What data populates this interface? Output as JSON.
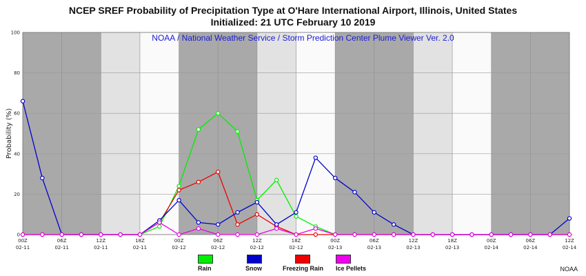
{
  "chart_data": {
    "type": "line",
    "title": "NCEP SREF Probability of Precipitation Type at O'Hare International Airport, Illinois, United States",
    "subtitle": "Initialized: 21 UTC February 10 2019",
    "plot_subtitle": "NOAA / National Weather Service / Storm Prediction Center Plume Viewer Ver. 2.0",
    "ylabel": "Probability (%)",
    "xlabel": "",
    "ylim": [
      0,
      100
    ],
    "yticks": [
      "0",
      "20",
      "40",
      "60",
      "80",
      "100"
    ],
    "xticks": [
      {
        "hour": "00Z",
        "date": "02-11"
      },
      {
        "hour": "06Z",
        "date": "02-11"
      },
      {
        "hour": "12Z",
        "date": "02-11"
      },
      {
        "hour": "18Z",
        "date": "02-11"
      },
      {
        "hour": "00Z",
        "date": "02-12"
      },
      {
        "hour": "06Z",
        "date": "02-12"
      },
      {
        "hour": "12Z",
        "date": "02-12"
      },
      {
        "hour": "18Z",
        "date": "02-12"
      },
      {
        "hour": "00Z",
        "date": "02-13"
      },
      {
        "hour": "06Z",
        "date": "02-13"
      },
      {
        "hour": "12Z",
        "date": "02-13"
      },
      {
        "hour": "18Z",
        "date": "02-13"
      },
      {
        "hour": "00Z",
        "date": "02-14"
      },
      {
        "hour": "06Z",
        "date": "02-14"
      },
      {
        "hour": "12Z",
        "date": "02-14"
      }
    ],
    "x_hours": [
      0,
      3,
      6,
      9,
      12,
      15,
      18,
      21,
      24,
      27,
      30,
      33,
      36,
      39,
      42,
      45,
      48,
      51,
      54,
      57,
      60,
      63,
      66,
      69,
      72,
      75,
      78,
      81,
      84
    ],
    "night_shading": [
      [
        0,
        12
      ],
      [
        24,
        36
      ],
      [
        48,
        60
      ],
      [
        72,
        84
      ]
    ],
    "grid": true,
    "legend_position": "bottom",
    "series": [
      {
        "name": "Rain",
        "color": "#00ee00",
        "values": [
          0,
          0,
          0,
          0,
          0,
          0,
          0,
          4,
          24,
          52,
          60,
          51,
          17,
          27,
          9,
          4,
          0,
          0,
          0,
          0,
          0,
          0,
          0,
          0,
          0,
          0,
          0,
          0,
          0
        ]
      },
      {
        "name": "Snow",
        "color": "#0000cc",
        "values": [
          66,
          28,
          0,
          0,
          0,
          0,
          0,
          7,
          17,
          6,
          5,
          11,
          16,
          5,
          11,
          38,
          28,
          21,
          11,
          5,
          0,
          0,
          0,
          0,
          0,
          0,
          0,
          0,
          8
        ]
      },
      {
        "name": "Freezing Rain",
        "color": "#ee0000",
        "values": [
          0,
          0,
          0,
          0,
          0,
          0,
          0,
          6,
          22,
          26,
          31,
          5,
          10,
          4,
          0,
          0,
          0,
          0,
          0,
          0,
          0,
          0,
          0,
          0,
          0,
          0,
          0,
          0,
          0
        ]
      },
      {
        "name": "Ice Pellets",
        "color": "#ee00ee",
        "values": [
          0,
          0,
          0,
          0,
          0,
          0,
          0,
          6,
          0,
          3,
          0,
          0,
          0,
          3,
          0,
          3,
          0,
          0,
          0,
          0,
          0,
          0,
          0,
          0,
          0,
          0,
          0,
          0,
          0
        ]
      }
    ]
  },
  "credit": "NOAA"
}
